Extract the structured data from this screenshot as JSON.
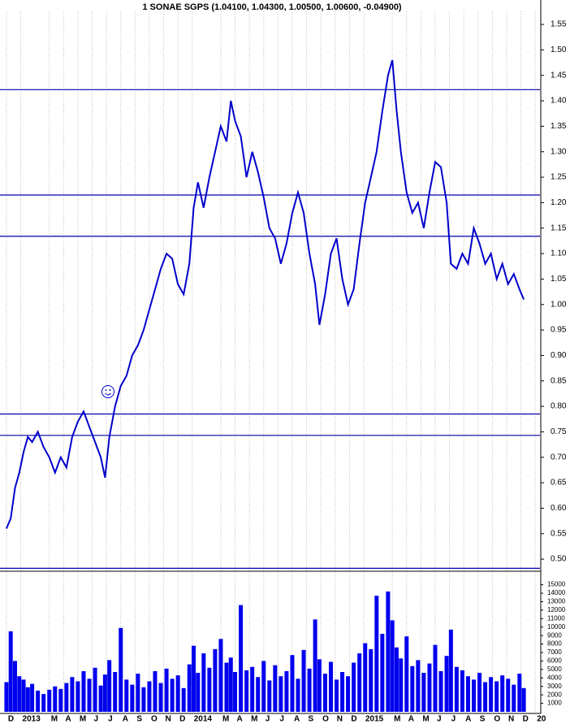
{
  "chart_data": [
    {
      "type": "line",
      "title": "1 SONAE SGPS (1.04100, 1.04300, 1.00500, 1.00600, -0.04900)",
      "x": [
        0,
        0.3,
        0.6,
        0.9,
        1.2,
        1.5,
        1.8,
        2.2,
        2.6,
        3.0,
        3.4,
        3.8,
        4.2,
        4.6,
        5.0,
        5.4,
        5.8,
        6.2,
        6.6,
        6.9,
        7.2,
        7.6,
        8.0,
        8.4,
        8.8,
        9.2,
        9.6,
        10.0,
        10.4,
        10.8,
        11.2,
        11.6,
        12.0,
        12.4,
        12.8,
        13.1,
        13.4,
        13.8,
        14.2,
        14.6,
        15.0,
        15.4,
        15.7,
        16.0,
        16.4,
        16.8,
        17.2,
        17.6,
        18.0,
        18.4,
        18.8,
        19.2,
        19.6,
        20.0,
        20.4,
        20.8,
        21.2,
        21.6,
        21.9,
        22.3,
        22.7,
        23.1,
        23.5,
        23.9,
        24.3,
        24.7,
        25.1,
        25.5,
        25.9,
        26.3,
        26.7,
        27.0,
        27.3,
        27.6,
        28.0,
        28.4,
        28.8,
        29.2,
        29.6,
        30.0,
        30.4,
        30.8,
        31.1,
        31.5,
        31.9,
        32.3,
        32.7,
        33.1,
        33.5,
        33.9,
        34.3,
        34.7,
        35.1,
        35.5,
        35.9,
        36.2
      ],
      "series": [
        {
          "color": "#0000cc",
          "values": [
            0.56,
            0.58,
            0.64,
            0.67,
            0.71,
            0.74,
            0.73,
            0.75,
            0.72,
            0.7,
            0.67,
            0.7,
            0.68,
            0.74,
            0.77,
            0.79,
            0.76,
            0.73,
            0.7,
            0.66,
            0.74,
            0.8,
            0.84,
            0.86,
            0.9,
            0.92,
            0.95,
            0.99,
            1.03,
            1.07,
            1.1,
            1.09,
            1.04,
            1.02,
            1.08,
            1.19,
            1.24,
            1.19,
            1.25,
            1.3,
            1.35,
            1.32,
            1.4,
            1.36,
            1.33,
            1.25,
            1.3,
            1.26,
            1.21,
            1.15,
            1.13,
            1.08,
            1.12,
            1.18,
            1.22,
            1.18,
            1.1,
            1.04,
            0.96,
            1.02,
            1.1,
            1.13,
            1.05,
            1.0,
            1.03,
            1.12,
            1.2,
            1.25,
            1.3,
            1.38,
            1.45,
            1.48,
            1.38,
            1.3,
            1.22,
            1.18,
            1.2,
            1.15,
            1.22,
            1.28,
            1.27,
            1.2,
            1.08,
            1.07,
            1.1,
            1.08,
            1.15,
            1.12,
            1.08,
            1.1,
            1.05,
            1.08,
            1.04,
            1.06,
            1.03,
            1.01
          ]
        }
      ],
      "hlines": [
        1.422,
        1.215,
        1.134,
        0.785,
        0.743,
        0.482
      ],
      "hline_color": "#0000aa",
      "xlim": [
        -0.45,
        37.33
      ],
      "ylim": [
        0.481,
        1.598
      ],
      "yticks": [
        {
          "value": 0.5,
          "label": "0.50"
        },
        {
          "value": 0.55,
          "label": "0.55"
        },
        {
          "value": 0.6,
          "label": "0.60"
        },
        {
          "value": 0.65,
          "label": "0.65"
        },
        {
          "value": 0.7,
          "label": "0.70"
        },
        {
          "value": 0.75,
          "label": "0.75"
        },
        {
          "value": 0.8,
          "label": "0.80"
        },
        {
          "value": 0.85,
          "label": "0.85"
        },
        {
          "value": 0.9,
          "label": "0.90"
        },
        {
          "value": 0.95,
          "label": "0.95"
        },
        {
          "value": 1.0,
          "label": "1.00"
        },
        {
          "value": 1.05,
          "label": "1.05"
        },
        {
          "value": 1.1,
          "label": "1.10"
        },
        {
          "value": 1.15,
          "label": "1.15"
        },
        {
          "value": 1.2,
          "label": "1.20"
        },
        {
          "value": 1.25,
          "label": "1.25"
        },
        {
          "value": 1.3,
          "label": "1.30"
        },
        {
          "value": 1.35,
          "label": "1.35"
        },
        {
          "value": 1.4,
          "label": "1.40"
        },
        {
          "value": 1.45,
          "label": "1.45"
        },
        {
          "value": 1.5,
          "label": "1.50"
        },
        {
          "value": 1.55,
          "label": "1.55"
        }
      ]
    },
    {
      "type": "bar",
      "x": [
        0,
        0.3,
        0.6,
        0.9,
        1.2,
        1.5,
        1.8,
        2.2,
        2.6,
        3.0,
        3.4,
        3.8,
        4.2,
        4.6,
        5.0,
        5.4,
        5.8,
        6.2,
        6.6,
        6.9,
        7.2,
        7.6,
        8.0,
        8.4,
        8.8,
        9.2,
        9.6,
        10.0,
        10.4,
        10.8,
        11.2,
        11.6,
        12.0,
        12.4,
        12.8,
        13.1,
        13.4,
        13.8,
        14.2,
        14.6,
        15.0,
        15.4,
        15.7,
        16.0,
        16.4,
        16.8,
        17.2,
        17.6,
        18.0,
        18.4,
        18.8,
        19.2,
        19.6,
        20.0,
        20.4,
        20.8,
        21.2,
        21.6,
        21.9,
        22.3,
        22.7,
        23.1,
        23.5,
        23.9,
        24.3,
        24.7,
        25.1,
        25.5,
        25.9,
        26.3,
        26.7,
        27.0,
        27.3,
        27.6,
        28.0,
        28.4,
        28.8,
        29.2,
        29.6,
        30.0,
        30.4,
        30.8,
        31.1,
        31.5,
        31.9,
        32.3,
        32.7,
        33.1,
        33.5,
        33.9,
        34.3,
        34.7,
        35.1,
        35.5,
        35.9,
        36.2
      ],
      "color": "#0000ee",
      "values": [
        3500,
        9500,
        6000,
        4200,
        3800,
        2900,
        3300,
        2500,
        2100,
        2600,
        3000,
        2700,
        3400,
        4100,
        3600,
        4800,
        3900,
        5200,
        3100,
        4400,
        6100,
        4700,
        9900,
        3800,
        3200,
        4500,
        2900,
        3600,
        4800,
        3400,
        5100,
        3900,
        4300,
        2800,
        5600,
        7800,
        4600,
        6900,
        5200,
        7400,
        8600,
        5800,
        6400,
        4700,
        12600,
        4900,
        5300,
        4100,
        6000,
        3700,
        5500,
        4200,
        4800,
        6700,
        3900,
        7300,
        5100,
        10900,
        6200,
        4500,
        5900,
        3800,
        4700,
        4200,
        5800,
        6900,
        8100,
        7400,
        13700,
        9200,
        14200,
        10800,
        7600,
        6300,
        8900,
        5400,
        6100,
        4600,
        5700,
        7900,
        4800,
        6600,
        9700,
        5300,
        4900,
        4200,
        3800,
        4600,
        3500,
        4100,
        3600,
        4300,
        3900,
        3200,
        4500,
        2800
      ],
      "xlim": [
        -0.45,
        37.33
      ],
      "ylim": [
        0,
        16400
      ],
      "yticks": [
        1000,
        2000,
        3000,
        4000,
        5000,
        6000,
        7000,
        8000,
        9000,
        10000,
        11000,
        12000,
        13000,
        14000,
        15000
      ],
      "xticks": [
        {
          "value": 0,
          "label": "D"
        },
        {
          "value": 1,
          "label": "2013"
        },
        {
          "value": 3,
          "label": "M"
        },
        {
          "value": 4,
          "label": "A"
        },
        {
          "value": 5,
          "label": "M"
        },
        {
          "value": 6,
          "label": "J"
        },
        {
          "value": 7,
          "label": "J"
        },
        {
          "value": 8,
          "label": "A"
        },
        {
          "value": 9,
          "label": "S"
        },
        {
          "value": 10,
          "label": "O"
        },
        {
          "value": 11,
          "label": "N"
        },
        {
          "value": 12,
          "label": "D"
        },
        {
          "value": 13,
          "label": "2014"
        },
        {
          "value": 15,
          "label": "M"
        },
        {
          "value": 16,
          "label": "A"
        },
        {
          "value": 17,
          "label": "M"
        },
        {
          "value": 18,
          "label": "J"
        },
        {
          "value": 19,
          "label": "J"
        },
        {
          "value": 20,
          "label": "A"
        },
        {
          "value": 21,
          "label": "S"
        },
        {
          "value": 22,
          "label": "O"
        },
        {
          "value": 23,
          "label": "N"
        },
        {
          "value": 24,
          "label": "D"
        },
        {
          "value": 25,
          "label": "2015"
        },
        {
          "value": 27,
          "label": "M"
        },
        {
          "value": 28,
          "label": "A"
        },
        {
          "value": 29,
          "label": "M"
        },
        {
          "value": 30,
          "label": "J"
        },
        {
          "value": 31,
          "label": "J"
        },
        {
          "value": 32,
          "label": "A"
        },
        {
          "value": 33,
          "label": "S"
        },
        {
          "value": 34,
          "label": "O"
        },
        {
          "value": 35,
          "label": "N"
        },
        {
          "value": 36,
          "label": "D"
        },
        {
          "value": 37,
          "label": "20"
        }
      ]
    }
  ]
}
